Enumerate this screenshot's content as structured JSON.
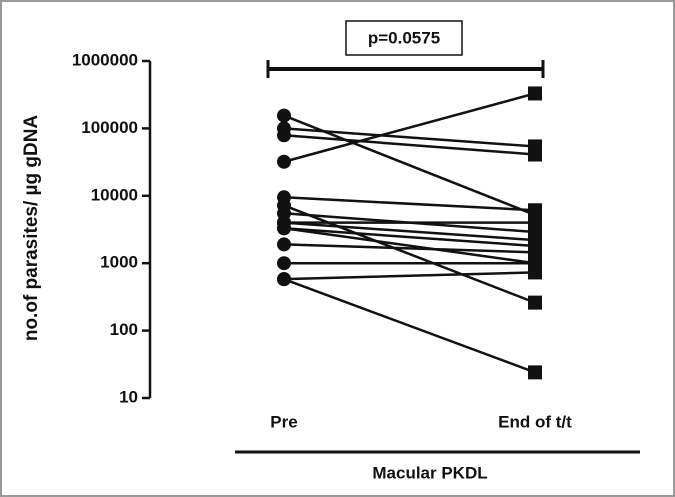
{
  "chart_data": {
    "type": "paired-line",
    "y_label": "no.of parasites/ µg gDNA",
    "categories": [
      "Pre",
      "End of  t/t"
    ],
    "group_label": "Macular PKDL",
    "annotation": "p=0.0575",
    "color": "#111111",
    "yscale": "log",
    "ylim": [
      10,
      1000000
    ],
    "yticks": [
      10,
      100,
      1000,
      10000,
      100000,
      1000000
    ],
    "series": [
      {
        "values": [
          155000,
          5200
        ]
      },
      {
        "values": [
          100000,
          54000
        ]
      },
      {
        "values": [
          79000,
          41000
        ]
      },
      {
        "values": [
          32000,
          330000
        ]
      },
      {
        "values": [
          9500,
          6100
        ]
      },
      {
        "values": [
          7200,
          260
        ]
      },
      {
        "values": [
          5500,
          2900
        ]
      },
      {
        "values": [
          4000,
          2200
        ]
      },
      {
        "values": [
          4000,
          4000
        ]
      },
      {
        "values": [
          3300,
          1800
        ]
      },
      {
        "values": [
          3300,
          1000
        ]
      },
      {
        "values": [
          1900,
          1450
        ]
      },
      {
        "values": [
          1000,
          1000
        ]
      },
      {
        "values": [
          580,
          730
        ]
      },
      {
        "values": [
          580,
          24
        ]
      }
    ]
  }
}
